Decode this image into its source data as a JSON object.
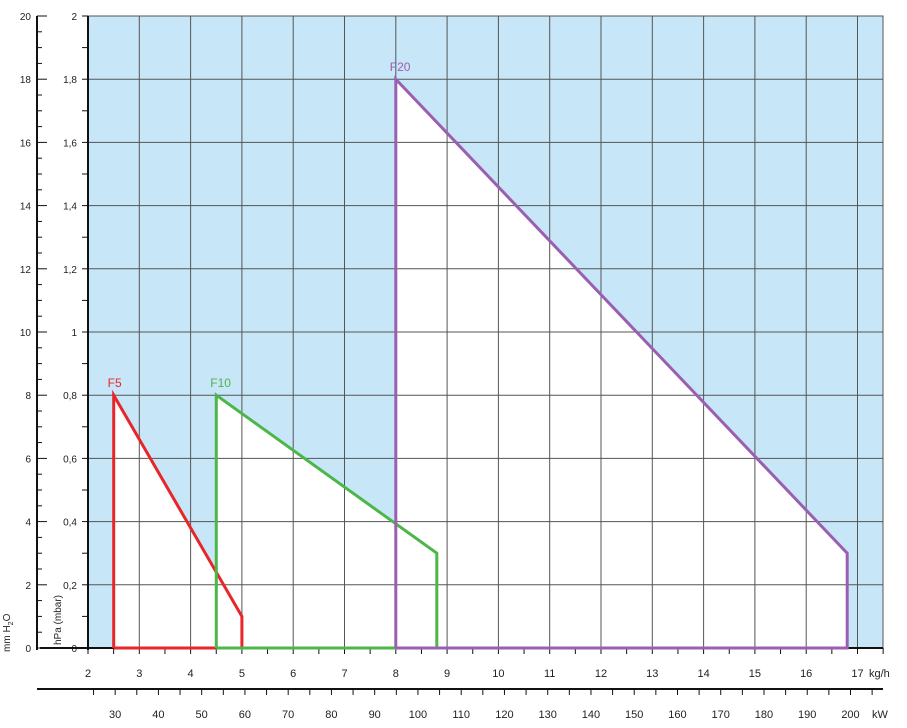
{
  "chart_data": {
    "type": "line",
    "title": "",
    "xlabel": "kg/h",
    "xlabel_secondary": "kW",
    "ylabel": "hPa (mbar)",
    "ylabel_secondary": "mm H2O",
    "xlim": [
      2,
      17.5
    ],
    "ylim": [
      0,
      2
    ],
    "ylim_secondary": [
      0,
      20
    ],
    "grid": true,
    "x_ticks": [
      "2",
      "3",
      "4",
      "5",
      "6",
      "7",
      "8",
      "9",
      "10",
      "11",
      "12",
      "13",
      "14",
      "15",
      "16",
      "17"
    ],
    "y_ticks": [
      "0",
      "0,2",
      "0,4",
      "0,6",
      "0,8",
      "1",
      "1,2",
      "1,4",
      "1,6",
      "1,8",
      "2"
    ],
    "y_ticks_secondary": [
      "0",
      "2",
      "4",
      "6",
      "8",
      "10",
      "12",
      "14",
      "16",
      "18",
      "20"
    ],
    "x_ticks_secondary": [
      "30",
      "40",
      "50",
      "60",
      "70",
      "80",
      "90",
      "100",
      "110",
      "120",
      "130",
      "140",
      "150",
      "160",
      "170",
      "180",
      "190",
      "200"
    ],
    "kw_per_kgh": 11.86,
    "colors": {
      "background": "#c7e6f8",
      "grid": "#555555",
      "axis": "#111111"
    },
    "series": [
      {
        "name": "F5",
        "color": "#e8262a",
        "points": [
          [
            2.5,
            0
          ],
          [
            2.5,
            0.8
          ],
          [
            5,
            0.1
          ],
          [
            5,
            0
          ],
          [
            2.5,
            0
          ]
        ],
        "label_at": [
          2.5,
          0.8
        ]
      },
      {
        "name": "F10",
        "color": "#4cb748",
        "points": [
          [
            4.5,
            0
          ],
          [
            4.5,
            0.8
          ],
          [
            8.8,
            0.3
          ],
          [
            8.8,
            0
          ],
          [
            4.5,
            0
          ]
        ],
        "label_at": [
          4.5,
          0.8
        ]
      },
      {
        "name": "F20",
        "color": "#9b5fb1",
        "points": [
          [
            8,
            0
          ],
          [
            8,
            1.8
          ],
          [
            16.8,
            0.3
          ],
          [
            16.8,
            0
          ],
          [
            8,
            0
          ]
        ],
        "label_at": [
          8,
          1.8
        ]
      }
    ]
  }
}
